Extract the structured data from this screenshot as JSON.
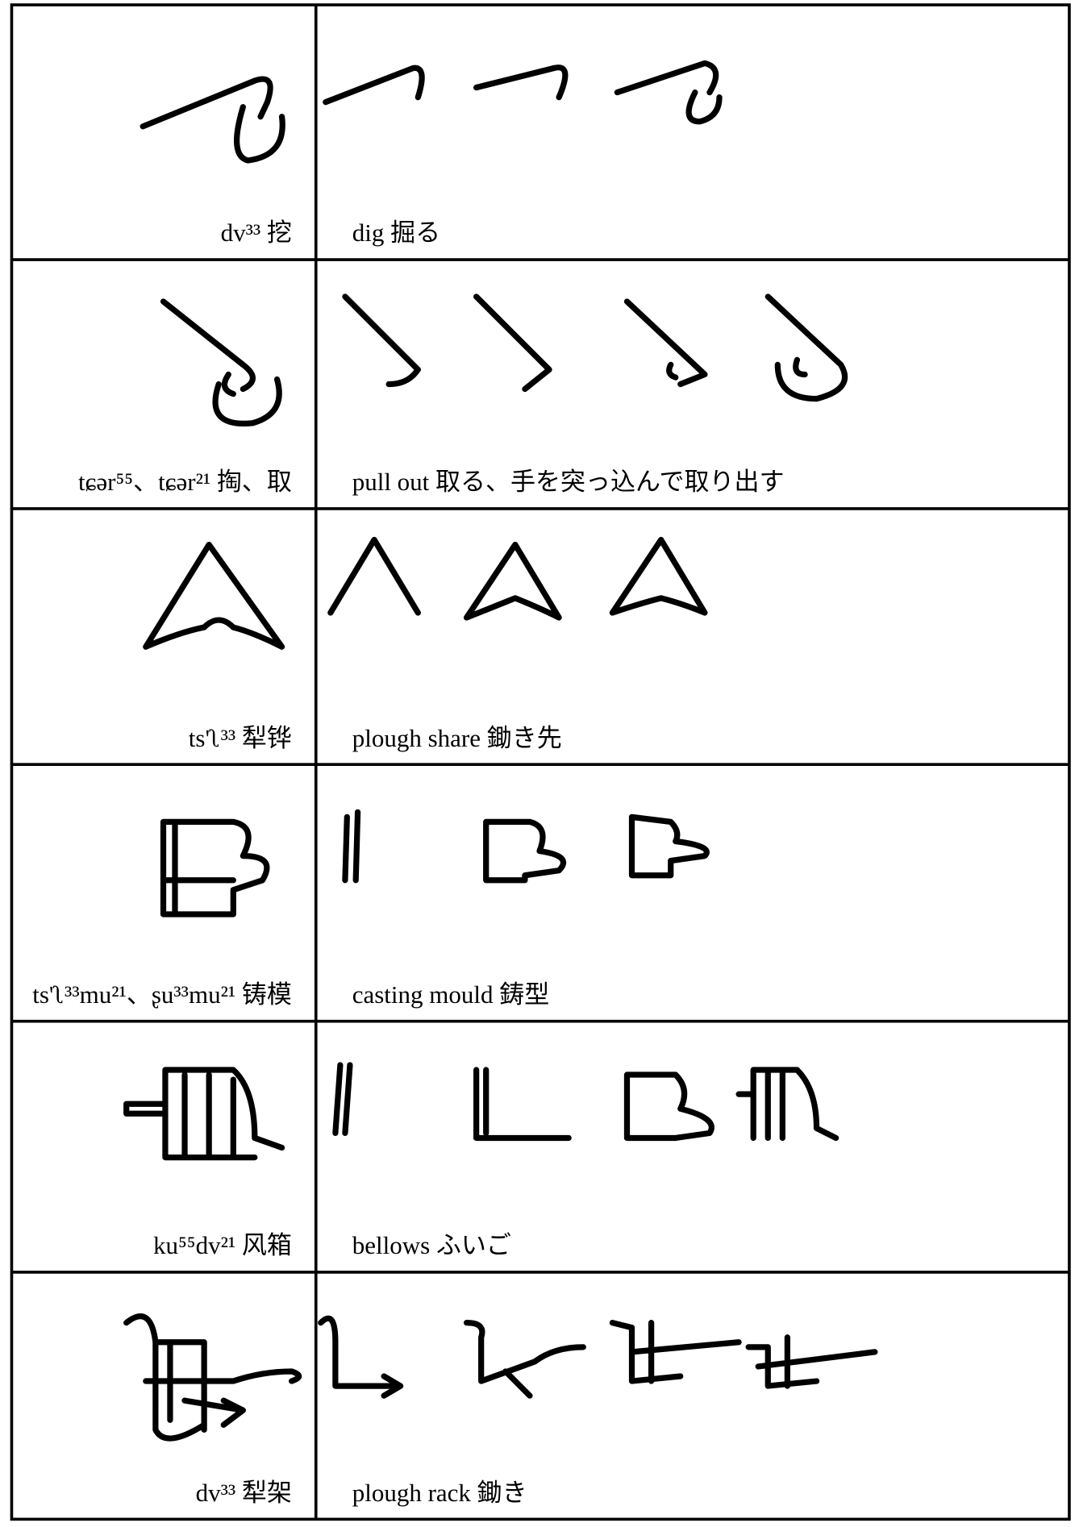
{
  "rows": [
    {
      "term": "dv³³ 挖",
      "gloss": "dig 掘る"
    },
    {
      "term": "tɕər⁵⁵、tɕər²¹ 掏、取",
      "gloss": "pull out 取る、手を突っ込んで取り出す"
    },
    {
      "term": "ts'ʅ³³ 犁铧",
      "gloss": "plough share 鋤き先"
    },
    {
      "term": "ts'ʅ³³mu²¹、ʂu³³mu²¹ 铸模",
      "gloss": "casting mould 鋳型"
    },
    {
      "term": "ku⁵⁵dv²¹ 风箱",
      "gloss": "bellows ふいご"
    },
    {
      "term": "dv³³ 犁架",
      "gloss": "plough rack 鋤き"
    }
  ]
}
